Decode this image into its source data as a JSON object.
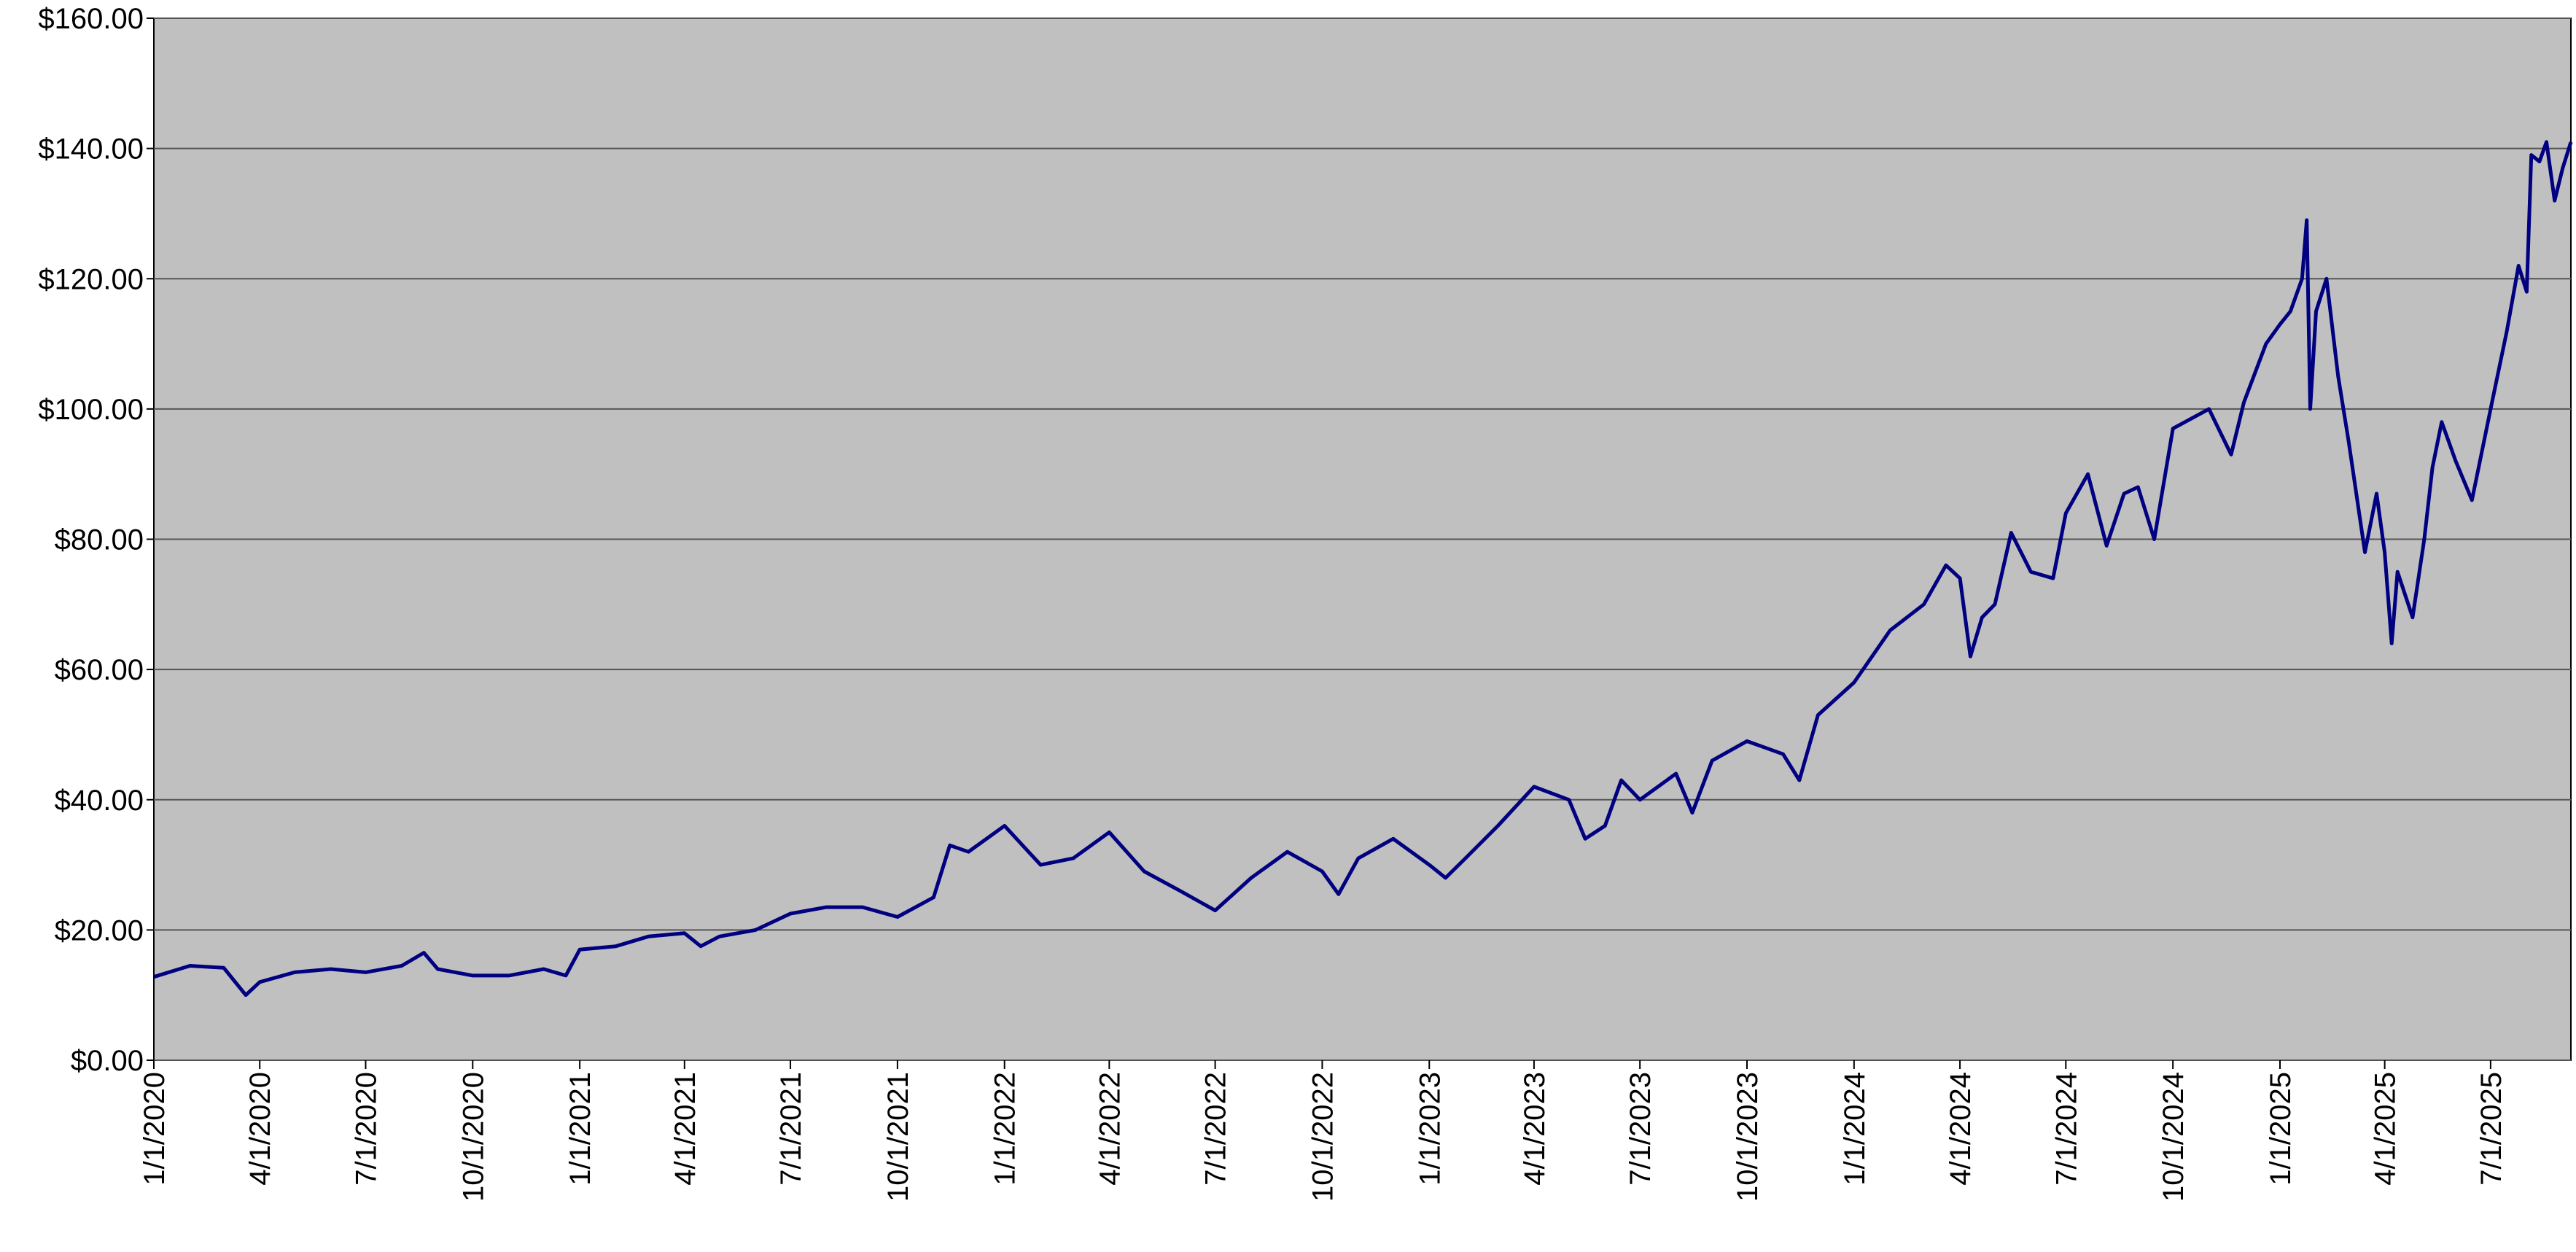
{
  "chart_data": {
    "type": "line",
    "color": "#000080",
    "grid": true,
    "x": [
      "1/1/2020",
      "2/1/2020",
      "3/1/2020",
      "3/20/2020",
      "4/1/2020",
      "5/1/2020",
      "6/1/2020",
      "7/1/2020",
      "8/1/2020",
      "8/20/2020",
      "9/1/2020",
      "10/1/2020",
      "11/1/2020",
      "12/1/2020",
      "12/20/2020",
      "1/1/2021",
      "2/1/2021",
      "3/1/2021",
      "4/1/2021",
      "4/15/2021",
      "5/1/2021",
      "6/1/2021",
      "7/1/2021",
      "8/1/2021",
      "9/1/2021",
      "10/1/2021",
      "11/1/2021",
      "11/15/2021",
      "12/1/2021",
      "1/1/2022",
      "2/1/2022",
      "3/1/2022",
      "4/1/2022",
      "5/1/2022",
      "6/1/2022",
      "7/1/2022",
      "8/1/2022",
      "9/1/2022",
      "10/1/2022",
      "10/15/2022",
      "11/1/2022",
      "12/1/2022",
      "1/1/2023",
      "1/15/2023",
      "2/1/2023",
      "3/1/2023",
      "4/1/2023",
      "5/1/2023",
      "5/15/2023",
      "6/1/2023",
      "6/15/2023",
      "7/1/2023",
      "8/1/2023",
      "8/15/2023",
      "9/1/2023",
      "10/1/2023",
      "11/1/2023",
      "11/15/2023",
      "12/1/2023",
      "1/1/2024",
      "2/1/2024",
      "3/1/2024",
      "3/20/2024",
      "4/1/2024",
      "4/10/2024",
      "4/20/2024",
      "5/1/2024",
      "5/15/2024",
      "6/1/2024",
      "6/20/2024",
      "7/1/2024",
      "7/20/2024",
      "8/5/2024",
      "8/20/2024",
      "9/1/2024",
      "9/15/2024",
      "10/1/2024",
      "11/1/2024",
      "11/20/2024",
      "12/1/2024",
      "12/20/2024",
      "1/1/2025",
      "1/10/2025",
      "1/20/2025",
      "1/24/2025",
      "1/27/2025",
      "2/1/2025",
      "2/10/2025",
      "2/20/2025",
      "3/1/2025",
      "3/15/2025",
      "3/25/2025",
      "4/1/2025",
      "4/7/2025",
      "4/12/2025",
      "4/25/2025",
      "5/5/2025",
      "5/12/2025",
      "5/20/2025",
      "6/1/2025",
      "6/15/2025",
      "7/1/2025",
      "7/15/2025",
      "7/25/2025",
      "8/1/2025",
      "8/5/2025",
      "8/12/2025",
      "8/18/2025",
      "8/25/2025",
      "9/1/2025",
      "9/8/2025"
    ],
    "values": [
      12.8,
      14.5,
      14.2,
      10,
      12,
      13.5,
      14,
      13.5,
      14.5,
      16.5,
      14,
      13,
      13,
      14,
      13,
      17,
      17.5,
      19,
      19.5,
      17.5,
      19,
      20,
      22.5,
      23.5,
      23.5,
      22,
      25,
      33,
      32,
      36,
      30,
      31,
      35,
      29,
      26,
      23,
      28,
      32,
      29,
      25.5,
      31,
      34,
      30,
      28,
      31,
      36,
      42,
      40,
      34,
      36,
      43,
      40,
      44,
      38,
      46,
      49,
      47,
      43,
      53,
      58,
      66,
      70,
      76,
      74,
      62,
      68,
      70,
      81,
      75,
      74,
      84,
      90,
      79,
      87,
      88,
      80,
      97,
      100,
      93,
      101,
      110,
      113,
      115,
      120,
      129,
      100,
      115,
      120,
      105,
      95,
      78,
      87,
      78,
      64,
      75,
      68,
      80,
      91,
      98,
      92,
      86,
      100,
      112,
      122,
      118,
      139,
      138,
      141,
      132,
      137,
      141
    ],
    "xlim": [
      "1/1/2020",
      "9/8/2025"
    ],
    "xticks": [
      "1/1/2020",
      "4/1/2020",
      "7/1/2020",
      "10/1/2020",
      "1/1/2021",
      "4/1/2021",
      "7/1/2021",
      "10/1/2021",
      "1/1/2022",
      "4/1/2022",
      "7/1/2022",
      "10/1/2022",
      "1/1/2023",
      "4/1/2023",
      "7/1/2023",
      "10/1/2023",
      "1/1/2024",
      "4/1/2024",
      "7/1/2024",
      "10/1/2024",
      "1/1/2025",
      "4/1/2025",
      "7/1/2025"
    ],
    "ylim": [
      0,
      160
    ],
    "yticks": [
      {
        "value": 0,
        "label": "$0.00"
      },
      {
        "value": 20,
        "label": "$20.00"
      },
      {
        "value": 40,
        "label": "$40.00"
      },
      {
        "value": 60,
        "label": "$60.00"
      },
      {
        "value": 80,
        "label": "$80.00"
      },
      {
        "value": 100,
        "label": "$100.00"
      },
      {
        "value": 120,
        "label": "$120.00"
      },
      {
        "value": 140,
        "label": "$140.00"
      },
      {
        "value": 160,
        "label": "$160.00"
      }
    ]
  }
}
